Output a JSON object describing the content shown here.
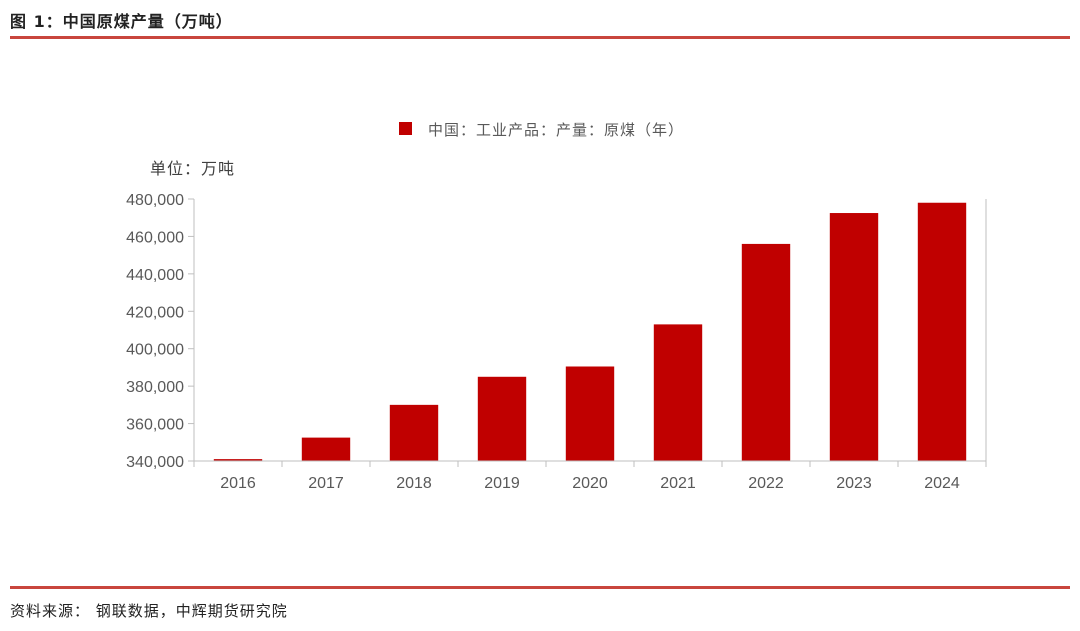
{
  "header": {
    "title": "图 1：中国原煤产量（万吨）"
  },
  "footer": {
    "source": "资料来源：  钢联数据，中辉期货研究院"
  },
  "colors": {
    "accent_rule": "#c9463d",
    "bar": "#c00000",
    "axis": "#bfbfbf",
    "tick_text": "#595959"
  },
  "chart_data": {
    "type": "bar",
    "unit_label": "单位：万吨",
    "categories": [
      "2016",
      "2017",
      "2018",
      "2019",
      "2020",
      "2021",
      "2022",
      "2023",
      "2024"
    ],
    "series": [
      {
        "name": "中国：工业产品：产量：原煤（年）",
        "values": [
          341000,
          352500,
          370000,
          385000,
          390500,
          413000,
          456000,
          472500,
          478000
        ]
      }
    ],
    "yticks": [
      "340,000",
      "360,000",
      "380,000",
      "400,000",
      "420,000",
      "440,000",
      "460,000",
      "480,000"
    ],
    "ylim": [
      340000,
      480000
    ],
    "legend_position": "top-center",
    "grid": false
  }
}
